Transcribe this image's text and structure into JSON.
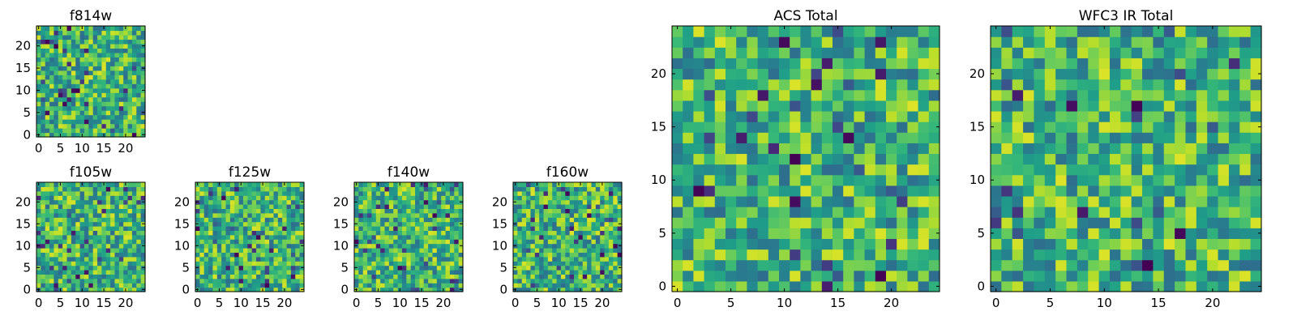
{
  "figure": {
    "background": "#ffffff"
  },
  "chart_data": [
    {
      "id": "f814w",
      "type": "heatmap",
      "title": "f814w",
      "size": 25,
      "seed": 11,
      "xlabel": "",
      "ylabel": "",
      "xlim": [
        0,
        24
      ],
      "ylim": [
        0,
        24
      ],
      "xticks": [
        0,
        5,
        10,
        15,
        20
      ],
      "yticks": [
        0,
        5,
        10,
        15,
        20
      ],
      "colormap": "viridis",
      "grid": false
    },
    {
      "id": "f105w",
      "type": "heatmap",
      "title": "f105w",
      "size": 25,
      "seed": 23,
      "xlabel": "",
      "ylabel": "",
      "xlim": [
        0,
        24
      ],
      "ylim": [
        0,
        24
      ],
      "xticks": [
        0,
        5,
        10,
        15,
        20
      ],
      "yticks": [
        0,
        5,
        10,
        15,
        20
      ],
      "colormap": "viridis",
      "grid": false
    },
    {
      "id": "f125w",
      "type": "heatmap",
      "title": "f125w",
      "size": 25,
      "seed": 37,
      "xlabel": "",
      "ylabel": "",
      "xlim": [
        0,
        24
      ],
      "ylim": [
        0,
        24
      ],
      "xticks": [
        0,
        5,
        10,
        15,
        20
      ],
      "yticks": [
        0,
        5,
        10,
        15,
        20
      ],
      "colormap": "viridis",
      "grid": false
    },
    {
      "id": "f140w",
      "type": "heatmap",
      "title": "f140w",
      "size": 25,
      "seed": 41,
      "xlabel": "",
      "ylabel": "",
      "xlim": [
        0,
        24
      ],
      "ylim": [
        0,
        24
      ],
      "xticks": [
        0,
        5,
        10,
        15,
        20
      ],
      "yticks": [
        0,
        5,
        10,
        15,
        20
      ],
      "colormap": "viridis",
      "grid": false
    },
    {
      "id": "f160w",
      "type": "heatmap",
      "title": "f160w",
      "size": 25,
      "seed": 53,
      "xlabel": "",
      "ylabel": "",
      "xlim": [
        0,
        24
      ],
      "ylim": [
        0,
        24
      ],
      "xticks": [
        0,
        5,
        10,
        15,
        20
      ],
      "yticks": [
        0,
        5,
        10,
        15,
        20
      ],
      "colormap": "viridis",
      "grid": false
    },
    {
      "id": "acs-total",
      "type": "heatmap",
      "title": "ACS Total",
      "size": 25,
      "seed": 67,
      "xlabel": "",
      "ylabel": "",
      "xlim": [
        0,
        24
      ],
      "ylim": [
        0,
        24
      ],
      "xticks": [
        0,
        5,
        10,
        15,
        20
      ],
      "yticks": [
        0,
        5,
        10,
        15,
        20
      ],
      "colormap": "viridis",
      "grid": false
    },
    {
      "id": "wfc3-ir-total",
      "type": "heatmap",
      "title": "WFC3 IR Total",
      "size": 25,
      "seed": 79,
      "xlabel": "",
      "ylabel": "",
      "xlim": [
        0,
        24
      ],
      "ylim": [
        0,
        24
      ],
      "xticks": [
        0,
        5,
        10,
        15,
        20
      ],
      "yticks": [
        0,
        5,
        10,
        15,
        20
      ],
      "colormap": "viridis",
      "grid": false
    }
  ]
}
